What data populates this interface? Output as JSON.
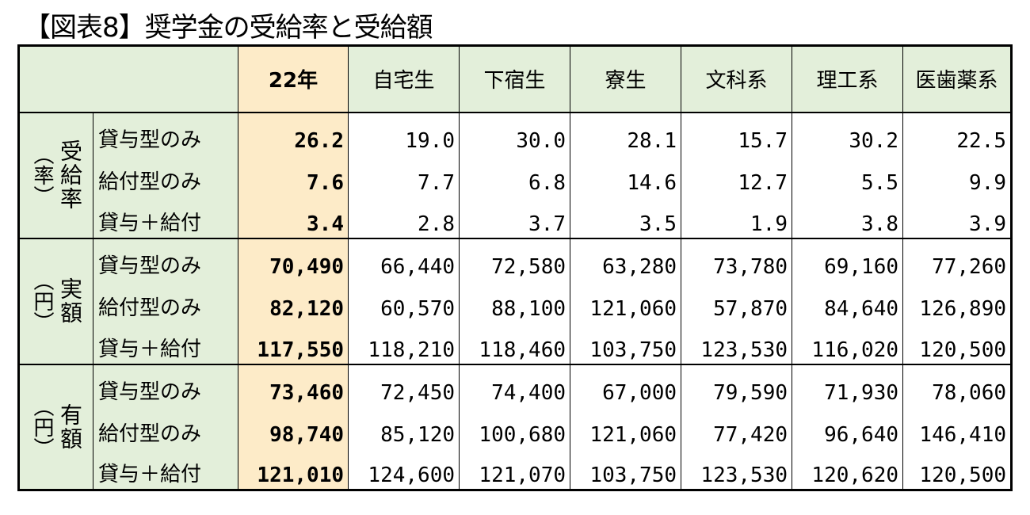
{
  "title": "【図表8】奨学金の受給率と受給額",
  "header": {
    "corner": "",
    "columns": [
      "22年",
      "自宅生",
      "下宿生",
      "寮生",
      "文科系",
      "理工系",
      "医歯薬系"
    ]
  },
  "groups": [
    {
      "label": "受給率",
      "unit_paren": "（率）",
      "rows": [
        {
          "label": "貸与型のみ",
          "values": [
            "26.2",
            "19.0",
            "30.0",
            "28.1",
            "15.7",
            "30.2",
            "22.5"
          ]
        },
        {
          "label": "給付型のみ",
          "values": [
            "7.6",
            "7.7",
            "6.8",
            "14.6",
            "12.7",
            "5.5",
            "9.9"
          ]
        },
        {
          "label": "貸与＋給付",
          "values": [
            "3.4",
            "2.8",
            "3.7",
            "3.5",
            "1.9",
            "3.8",
            "3.9"
          ]
        }
      ]
    },
    {
      "label": "実額",
      "unit_paren": "（円）",
      "rows": [
        {
          "label": "貸与型のみ",
          "values": [
            "70,490",
            "66,440",
            "72,580",
            "63,280",
            "73,780",
            "69,160",
            "77,260"
          ]
        },
        {
          "label": "給付型のみ",
          "values": [
            "82,120",
            "60,570",
            "88,100",
            "121,060",
            "57,870",
            "84,640",
            "126,890"
          ]
        },
        {
          "label": "貸与＋給付",
          "values": [
            "117,550",
            "118,210",
            "118,460",
            "103,750",
            "123,530",
            "116,020",
            "120,500"
          ]
        }
      ]
    },
    {
      "label": "有額",
      "unit_paren": "（円）",
      "rows": [
        {
          "label": "貸与型のみ",
          "values": [
            "73,460",
            "72,450",
            "74,400",
            "67,000",
            "79,590",
            "71,930",
            "78,060"
          ]
        },
        {
          "label": "給付型のみ",
          "values": [
            "98,740",
            "85,120",
            "100,680",
            "121,060",
            "77,420",
            "96,640",
            "146,410"
          ]
        },
        {
          "label": "貸与＋給付",
          "values": [
            "121,010",
            "124,600",
            "121,070",
            "103,750",
            "123,530",
            "120,620",
            "120,500"
          ]
        }
      ]
    }
  ],
  "colors": {
    "header_bg": "#e3efda",
    "highlight_bg": "#fdebc8",
    "border": "#000000"
  }
}
